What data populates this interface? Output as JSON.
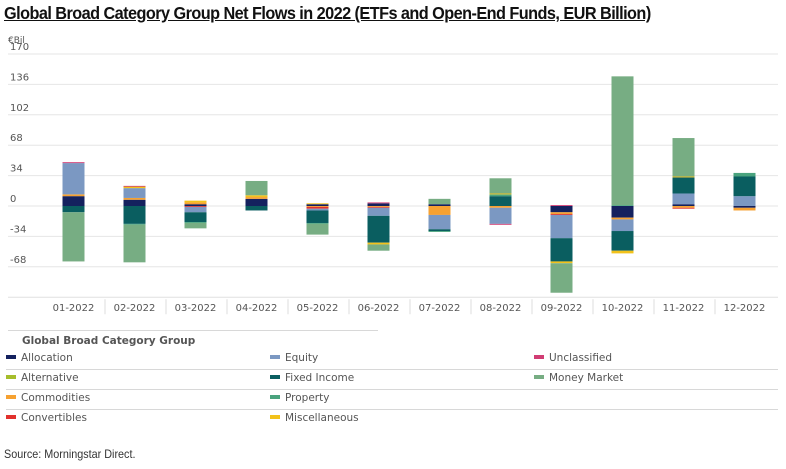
{
  "chart_data": {
    "type": "bar",
    "stacked": true,
    "title": "Global Broad Category Group Net Flows in 2022 (ETFs and Open-End Funds, EUR Billion)",
    "unit_label": "€Bil",
    "xlabel": "",
    "ylabel": "€Bil",
    "ylim": [
      -102,
      170
    ],
    "yticks": [
      170,
      136,
      102,
      68,
      34,
      0,
      -34,
      -68
    ],
    "grid": true,
    "legend_title": "Global Broad Category Group",
    "legend_position": "bottom",
    "categories": [
      "01-2022",
      "02-2022",
      "03-2022",
      "04-2022",
      "05-2022",
      "06-2022",
      "07-2022",
      "08-2022",
      "09-2022",
      "10-2022",
      "11-2022",
      "12-2022"
    ],
    "series": [
      {
        "name": "Allocation",
        "color": "#14215e",
        "values": [
          11,
          7,
          2,
          8,
          2,
          3,
          2,
          0,
          -7,
          -13,
          2,
          -2
        ]
      },
      {
        "name": "Alternative",
        "color": "#a6bd2b",
        "values": [
          0,
          0,
          0,
          0,
          0,
          0,
          0,
          0,
          0,
          0,
          0,
          0
        ]
      },
      {
        "name": "Commodities",
        "color": "#f6a131",
        "values": [
          2,
          2,
          2,
          2,
          -1,
          -1,
          -10,
          -2,
          -2,
          -2,
          -2,
          -3
        ]
      },
      {
        "name": "Convertibles",
        "color": "#e1312d",
        "values": [
          0,
          0,
          -1,
          0,
          -2,
          -1,
          0,
          0,
          -1,
          0,
          -1,
          0
        ]
      },
      {
        "name": "Equity",
        "color": "#7b98c2",
        "values": [
          35,
          11,
          -6,
          0,
          -2,
          -9,
          -16,
          -18,
          -26,
          -13,
          12,
          11
        ]
      },
      {
        "name": "Fixed Income",
        "color": "#0a5e60",
        "values": [
          -7,
          -20,
          -11,
          -5,
          -14,
          -30,
          -2,
          11,
          -26,
          -22,
          18,
          22
        ]
      },
      {
        "name": "Property",
        "color": "#4aa37e",
        "values": [
          0,
          -1,
          -1,
          0,
          -1,
          0,
          -1,
          2,
          0,
          1,
          0,
          4
        ]
      },
      {
        "name": "Miscellaneous",
        "color": "#f2c21b",
        "values": [
          0,
          2,
          2,
          2,
          1,
          -2,
          0,
          1,
          -2,
          -3,
          1,
          0
        ]
      },
      {
        "name": "Unclassified",
        "color": "#d13d74",
        "values": [
          1,
          0.5,
          0,
          0,
          0,
          1,
          0,
          -1,
          1,
          0,
          0,
          0
        ]
      },
      {
        "name": "Money Market",
        "color": "#77ad83",
        "values": [
          -55,
          -42,
          -6,
          16,
          -12,
          -7,
          6,
          17,
          -33,
          144,
          43,
          0
        ]
      }
    ]
  },
  "legend": {
    "title": "Global Broad Category Group",
    "items": [
      {
        "label": "Allocation",
        "color": "#14215e"
      },
      {
        "label": "Equity",
        "color": "#7b98c2"
      },
      {
        "label": "Unclassified",
        "color": "#d13d74"
      },
      {
        "label": "Alternative",
        "color": "#a6bd2b"
      },
      {
        "label": "Fixed Income",
        "color": "#0a5e60"
      },
      {
        "label": "Money Market",
        "color": "#77ad83"
      },
      {
        "label": "Commodities",
        "color": "#f6a131"
      },
      {
        "label": "Property",
        "color": "#4aa37e"
      },
      {
        "label": "Convertibles",
        "color": "#e1312d"
      },
      {
        "label": "Miscellaneous",
        "color": "#f2c21b"
      }
    ]
  },
  "source": "Source: Morningstar Direct."
}
